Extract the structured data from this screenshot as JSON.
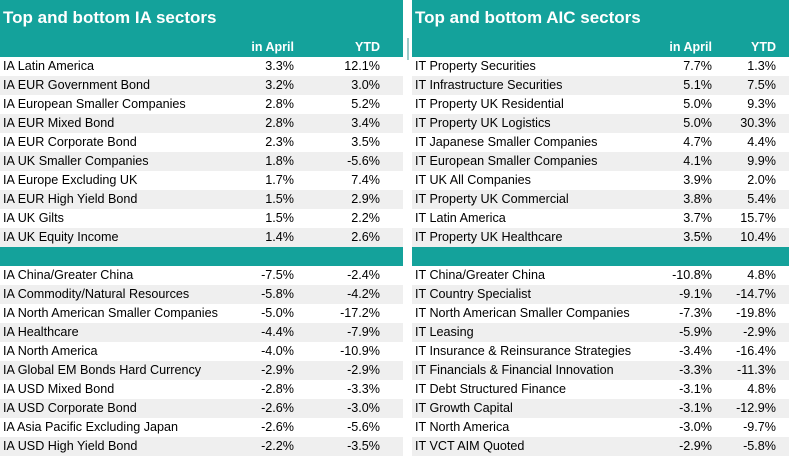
{
  "ia": {
    "title": "Top and bottom IA sectors",
    "col_april": "in April",
    "col_ytd": "YTD",
    "top": [
      {
        "name": "IA Latin America",
        "april": "3.3%",
        "ytd": "12.1%"
      },
      {
        "name": "IA EUR Government Bond",
        "april": "3.2%",
        "ytd": "3.0%"
      },
      {
        "name": "IA European Smaller Companies",
        "april": "2.8%",
        "ytd": "5.2%"
      },
      {
        "name": "IA EUR Mixed Bond",
        "april": "2.8%",
        "ytd": "3.4%"
      },
      {
        "name": "IA EUR Corporate Bond",
        "april": "2.3%",
        "ytd": "3.5%"
      },
      {
        "name": "IA UK Smaller Companies",
        "april": "1.8%",
        "ytd": "-5.6%"
      },
      {
        "name": "IA Europe Excluding UK",
        "april": "1.7%",
        "ytd": "7.4%"
      },
      {
        "name": "IA EUR High Yield Bond",
        "april": "1.5%",
        "ytd": "2.9%"
      },
      {
        "name": "IA UK Gilts",
        "april": "1.5%",
        "ytd": "2.2%"
      },
      {
        "name": "IA UK Equity Income",
        "april": "1.4%",
        "ytd": "2.6%"
      }
    ],
    "bottom": [
      {
        "name": "IA China/Greater China",
        "april": "-7.5%",
        "ytd": "-2.4%"
      },
      {
        "name": "IA Commodity/Natural Resources",
        "april": "-5.8%",
        "ytd": "-4.2%"
      },
      {
        "name": "IA North American Smaller Companies",
        "april": "-5.0%",
        "ytd": "-17.2%"
      },
      {
        "name": "IA Healthcare",
        "april": "-4.4%",
        "ytd": "-7.9%"
      },
      {
        "name": "IA North America",
        "april": "-4.0%",
        "ytd": "-10.9%"
      },
      {
        "name": "IA Global EM Bonds Hard Currency",
        "april": "-2.9%",
        "ytd": "-2.9%"
      },
      {
        "name": "IA USD Mixed Bond",
        "april": "-2.8%",
        "ytd": "-3.3%"
      },
      {
        "name": "IA USD Corporate Bond",
        "april": "-2.6%",
        "ytd": "-3.0%"
      },
      {
        "name": "IA Asia Pacific Excluding Japan",
        "april": "-2.6%",
        "ytd": "-5.6%"
      },
      {
        "name": "IA USD High Yield Bond",
        "april": "-2.2%",
        "ytd": "-3.5%"
      }
    ]
  },
  "aic": {
    "title": "Top and bottom AIC sectors",
    "col_april": "in April",
    "col_ytd": "YTD",
    "top": [
      {
        "name": "IT Property Securities",
        "april": "7.7%",
        "ytd": "1.3%"
      },
      {
        "name": "IT Infrastructure Securities",
        "april": "5.1%",
        "ytd": "7.5%"
      },
      {
        "name": "IT Property UK Residential",
        "april": "5.0%",
        "ytd": "9.3%"
      },
      {
        "name": "IT Property UK Logistics",
        "april": "5.0%",
        "ytd": "30.3%"
      },
      {
        "name": "IT Japanese Smaller Companies",
        "april": "4.7%",
        "ytd": "4.4%"
      },
      {
        "name": "IT European Smaller Companies",
        "april": "4.1%",
        "ytd": "9.9%"
      },
      {
        "name": "IT UK All Companies",
        "april": "3.9%",
        "ytd": "2.0%"
      },
      {
        "name": "IT Property UK Commercial",
        "april": "3.8%",
        "ytd": "5.4%"
      },
      {
        "name": "IT Latin America",
        "april": "3.7%",
        "ytd": "15.7%"
      },
      {
        "name": "IT Property UK Healthcare",
        "april": "3.5%",
        "ytd": "10.4%"
      }
    ],
    "bottom": [
      {
        "name": "IT China/Greater China",
        "april": "-10.8%",
        "ytd": "4.8%"
      },
      {
        "name": "IT Country Specialist",
        "april": "-9.1%",
        "ytd": "-14.7%"
      },
      {
        "name": "IT North American Smaller Companies",
        "april": "-7.3%",
        "ytd": "-19.8%"
      },
      {
        "name": "IT Leasing",
        "april": "-5.9%",
        "ytd": "-2.9%"
      },
      {
        "name": "IT Insurance & Reinsurance Strategies",
        "april": "-3.4%",
        "ytd": "-16.4%"
      },
      {
        "name": "IT Financials & Financial Innovation",
        "april": "-3.3%",
        "ytd": "-11.3%"
      },
      {
        "name": "IT Debt Structured Finance",
        "april": "-3.1%",
        "ytd": "4.8%"
      },
      {
        "name": "IT Growth Capital",
        "april": "-3.1%",
        "ytd": "-12.9%"
      },
      {
        "name": "IT North America",
        "april": "-3.0%",
        "ytd": "-9.7%"
      },
      {
        "name": "IT VCT AIM Quoted",
        "april": "-2.9%",
        "ytd": "-5.8%"
      }
    ]
  },
  "colors": {
    "header": "#14a29b",
    "stripe": "#efefef"
  }
}
